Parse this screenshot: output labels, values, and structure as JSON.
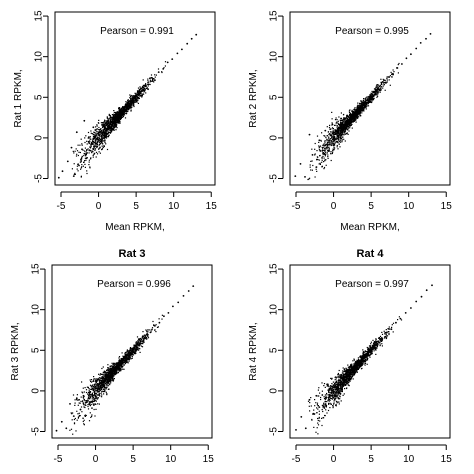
{
  "chart_data": [
    {
      "type": "scatter",
      "title": "",
      "xlabel": "Mean RPKM,",
      "ylabel": "Rat 1 RPKM,",
      "annotation": "Pearson = 0.991",
      "xlim": [
        -5.8,
        15.5
      ],
      "ylim": [
        -5.8,
        15.5
      ],
      "xticks": [
        "-5",
        "0",
        "5",
        "10",
        "15"
      ],
      "yticks": [
        "-5",
        "0",
        "5",
        "10",
        "15"
      ],
      "points": [
        [
          -5.3,
          -4.9
        ],
        [
          -4.8,
          -4.1
        ],
        [
          -4.1,
          -2.9
        ],
        [
          -3.6,
          -1.2
        ],
        [
          -3.3,
          -4.7
        ],
        [
          -2.9,
          0.7
        ],
        [
          -2.6,
          -3.4
        ],
        [
          -2.2,
          -1.4
        ],
        [
          -1.9,
          2.1
        ],
        [
          -1.6,
          -2.5
        ],
        [
          -1.3,
          0.1
        ],
        [
          -1,
          -0.8
        ],
        [
          -0.7,
          1.3
        ],
        [
          -0.4,
          -0.5
        ],
        [
          0,
          0.6
        ],
        [
          0.3,
          -0.2
        ],
        [
          0.7,
          1.4
        ],
        [
          1,
          0.5
        ],
        [
          1.3,
          2.1
        ],
        [
          1.7,
          1.1
        ],
        [
          2,
          2.5
        ],
        [
          2.3,
          1.7
        ],
        [
          2.7,
          3.1
        ],
        [
          3,
          2.4
        ],
        [
          3.3,
          3.6
        ],
        [
          3.7,
          3
        ],
        [
          4,
          4.3
        ],
        [
          4.3,
          3.7
        ],
        [
          4.7,
          5
        ],
        [
          5,
          4.6
        ],
        [
          5.4,
          5.7
        ],
        [
          5.8,
          5.2
        ],
        [
          6.2,
          6.5
        ],
        [
          6.6,
          6
        ],
        [
          7,
          7.4
        ],
        [
          7.5,
          7.1
        ],
        [
          8,
          8.1
        ],
        [
          8.6,
          8.5
        ],
        [
          9.2,
          9.3
        ],
        [
          9.8,
          9.7
        ],
        [
          10.5,
          10.4
        ],
        [
          11.1,
          10.9
        ],
        [
          11.8,
          11.6
        ],
        [
          12.4,
          12.2
        ],
        [
          13,
          12.7
        ]
      ]
    },
    {
      "type": "scatter",
      "title": "",
      "xlabel": "Mean RPKM,",
      "ylabel": "Rat 2 RPKM,",
      "annotation": "Pearson = 0.995",
      "xlim": [
        -5.8,
        15.5
      ],
      "ylim": [
        -5.8,
        15.5
      ],
      "xticks": [
        "-5",
        "0",
        "5",
        "10",
        "15"
      ],
      "yticks": [
        "-5",
        "0",
        "5",
        "10",
        "15"
      ],
      "points": [
        [
          -5.1,
          -4.7
        ],
        [
          -4.4,
          -3.2
        ],
        [
          -3.8,
          -4.8
        ],
        [
          -3.2,
          0.4
        ],
        [
          -2.8,
          -2.1
        ],
        [
          -2.3,
          -3.6
        ],
        [
          -1.9,
          -0.3
        ],
        [
          -1.5,
          -1.6
        ],
        [
          -1.1,
          0.9
        ],
        [
          -0.8,
          -0.9
        ],
        [
          -0.4,
          0.3
        ],
        [
          0,
          -0.4
        ],
        [
          0.3,
          0.9
        ],
        [
          0.7,
          0.3
        ],
        [
          1,
          1.5
        ],
        [
          1.4,
          1.1
        ],
        [
          1.7,
          2.1
        ],
        [
          2.1,
          1.7
        ],
        [
          2.4,
          2.7
        ],
        [
          2.8,
          2.4
        ],
        [
          3.1,
          3.3
        ],
        [
          3.5,
          3
        ],
        [
          3.9,
          4.1
        ],
        [
          4.3,
          3.8
        ],
        [
          4.7,
          4.9
        ],
        [
          5.1,
          4.8
        ],
        [
          5.5,
          5.7
        ],
        [
          5.9,
          5.6
        ],
        [
          6.4,
          6.6
        ],
        [
          6.9,
          6.8
        ],
        [
          7.4,
          7.5
        ],
        [
          7.9,
          7.8
        ],
        [
          8.5,
          8.6
        ],
        [
          9.1,
          9.1
        ],
        [
          9.7,
          9.8
        ],
        [
          10.3,
          10.3
        ],
        [
          11,
          11
        ],
        [
          11.6,
          11.7
        ],
        [
          12.3,
          12.2
        ],
        [
          12.9,
          12.8
        ]
      ]
    },
    {
      "type": "scatter",
      "title": "Rat 3",
      "xlabel": "",
      "ylabel": "Rat 3 RPKM,",
      "annotation": "Pearson = 0.996",
      "xlim": [
        -5.8,
        15.5
      ],
      "ylim": [
        -5.8,
        15.5
      ],
      "xticks": [
        "-5",
        "0",
        "5",
        "10",
        "15"
      ],
      "yticks": [
        "-5",
        "0",
        "5",
        "10",
        "15"
      ],
      "points": [
        [
          -5.2,
          -4.9
        ],
        [
          -4.5,
          -3.8
        ],
        [
          -3.9,
          -4.6
        ],
        [
          -3.4,
          -1.6
        ],
        [
          -2.9,
          -3.1
        ],
        [
          -2.5,
          -0.9
        ],
        [
          -2,
          -2.3
        ],
        [
          -1.6,
          -0.6
        ],
        [
          -1.2,
          -1.4
        ],
        [
          -0.8,
          -0.2
        ],
        [
          -0.4,
          -0.7
        ],
        [
          0,
          0.3
        ],
        [
          0.4,
          -0.1
        ],
        [
          0.8,
          0.9
        ],
        [
          1.2,
          0.6
        ],
        [
          1.6,
          1.7
        ],
        [
          2,
          1.4
        ],
        [
          2.4,
          2.5
        ],
        [
          2.8,
          2.2
        ],
        [
          3.2,
          3.3
        ],
        [
          3.6,
          3
        ],
        [
          4,
          4.1
        ],
        [
          4.4,
          3.9
        ],
        [
          4.9,
          5
        ],
        [
          5.3,
          4.8
        ],
        [
          5.8,
          5.9
        ],
        [
          6.3,
          6.1
        ],
        [
          6.8,
          6.9
        ],
        [
          7.3,
          7.2
        ],
        [
          7.9,
          8
        ],
        [
          8.5,
          8.4
        ],
        [
          9.1,
          9.2
        ],
        [
          9.7,
          9.6
        ],
        [
          10.3,
          10.4
        ],
        [
          11,
          10.9
        ],
        [
          11.7,
          11.7
        ],
        [
          12.4,
          12.3
        ],
        [
          13,
          12.9
        ]
      ]
    },
    {
      "type": "scatter",
      "title": "Rat 4",
      "xlabel": "",
      "ylabel": "Rat 4 RPKM,",
      "annotation": "Pearson = 0.997",
      "xlim": [
        -5.8,
        15.5
      ],
      "ylim": [
        -5.8,
        15.5
      ],
      "xticks": [
        "-5",
        "0",
        "5",
        "10",
        "15"
      ],
      "yticks": [
        "-5",
        "0",
        "5",
        "10",
        "15"
      ],
      "points": [
        [
          -5,
          -4.8
        ],
        [
          -4.3,
          -3.2
        ],
        [
          -3.7,
          -4.6
        ],
        [
          -3.2,
          -1.1
        ],
        [
          -2.7,
          -2.8
        ],
        [
          -2.3,
          -0.6
        ],
        [
          -1.9,
          -2
        ],
        [
          -1.5,
          -0.5
        ],
        [
          -1.1,
          -1.3
        ],
        [
          -0.7,
          0.1
        ],
        [
          -0.3,
          -0.6
        ],
        [
          0.1,
          0.4
        ],
        [
          0.5,
          0
        ],
        [
          0.9,
          1
        ],
        [
          1.3,
          0.7
        ],
        [
          1.7,
          1.8
        ],
        [
          2.1,
          1.5
        ],
        [
          2.5,
          2.6
        ],
        [
          2.9,
          2.3
        ],
        [
          3.3,
          3.4
        ],
        [
          3.7,
          3.1
        ],
        [
          4.1,
          4.2
        ],
        [
          4.5,
          4
        ],
        [
          5,
          5.1
        ],
        [
          5.5,
          5.3
        ],
        [
          6,
          6.1
        ],
        [
          6.5,
          6.4
        ],
        [
          7.1,
          7.2
        ],
        [
          7.7,
          7.6
        ],
        [
          8.3,
          8.4
        ],
        [
          8.9,
          8.9
        ],
        [
          9.6,
          9.6
        ],
        [
          10.3,
          10.2
        ],
        [
          11,
          11
        ],
        [
          11.7,
          11.6
        ],
        [
          12.4,
          12.4
        ],
        [
          13.1,
          13
        ]
      ]
    }
  ]
}
